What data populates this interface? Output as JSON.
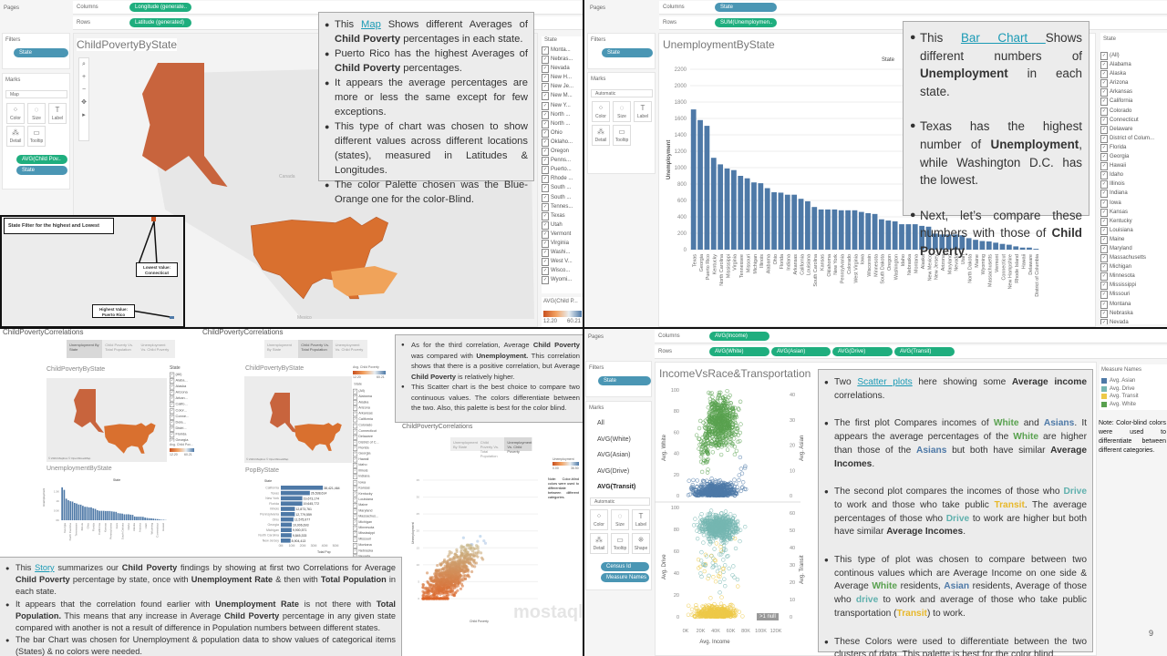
{
  "q1": {
    "pages": "Pages",
    "columns_label": "Columns",
    "rows_label": "Rows",
    "columns_pill": "Longitude (generate..",
    "rows_pill": "Latitude (generated)",
    "filters_label": "Filters",
    "filter_pill": "State",
    "marks_label": "Marks",
    "mark_type": "Map",
    "mark_buttons": [
      "Color",
      "Size",
      "Label",
      "Detail",
      "Tooltip"
    ],
    "mark_pills": [
      "AVG(Child Pov..",
      "State"
    ],
    "title": "ChildPovertyByState",
    "map_labels": {
      "canada": "Canada",
      "mexico": "Mexico"
    },
    "note": [
      [
        {
          "t": "This "
        },
        {
          "t": "Map",
          "link": true
        },
        {
          "t": " Shows different Averages of "
        },
        {
          "t": "Child Poverty",
          "b": true
        },
        {
          "t": " percentages in each state."
        }
      ],
      [
        {
          "t": "Puerto Rico has the highest Averages of "
        },
        {
          "t": "Child Poverty",
          "b": true
        },
        {
          "t": " percentages."
        }
      ],
      [
        {
          "t": "It appears the average percentages are more or less the same except for few exceptions."
        }
      ],
      [
        {
          "t": "This type of chart was chosen to show different values across different locations (states), measured in Latitudes & Longitudes."
        }
      ],
      [
        {
          "t": "The color Palette chosen was the Blue-Orange one for the color-Blind."
        }
      ]
    ],
    "state_header": "State",
    "states": [
      "Monta...",
      "Nebras...",
      "Nevada",
      "New H...",
      "New Je...",
      "New M...",
      "New Y...",
      "North ...",
      "North ...",
      "Ohio",
      "Oklaho...",
      "Oregon",
      "Penns...",
      "Puerto...",
      "Rhode ...",
      "South ...",
      "South ...",
      "Tennes...",
      "Texas",
      "Utah",
      "Vermont",
      "Virginia",
      "Washi...",
      "West V...",
      "Wisco...",
      "Wyomi..."
    ],
    "legend_title": "AVG(Child P...",
    "legend_min": "12.20",
    "legend_max": "60.21",
    "inset": {
      "label": "State Filter for the highest and Lowest",
      "lowest": "Lowest Value: Connecticut",
      "highest": "Highest Value: Puerto Rico"
    }
  },
  "q2": {
    "pages": "Pages",
    "columns_label": "Columns",
    "rows_label": "Rows",
    "columns_pill": "State",
    "rows_pill": "SUM(Unemploymen..",
    "filters_label": "Filters",
    "filter_pill": "State",
    "marks_label": "Marks",
    "mark_type": "Automatic",
    "mark_buttons": [
      "Color",
      "Size",
      "Label",
      "Detail",
      "Tooltip"
    ],
    "title": "UnemploymentByState",
    "col_header": "State",
    "y_axis_label": "Unemployment",
    "note": [
      [
        {
          "t": "This "
        },
        {
          "t": "Bar Chart ",
          "link": true
        },
        {
          "t": "Shows different numbers of "
        },
        {
          "t": "Unemployment",
          "b": true
        },
        {
          "t": " in each state."
        }
      ],
      [
        {
          "t": "Texas has the highest number of "
        },
        {
          "t": "Unemployment",
          "b": true
        },
        {
          "t": ", while Washington D.C. has the lowest."
        }
      ],
      [
        {
          "t": "Next, let’s compare these numbers with those of "
        },
        {
          "t": "Child Poverty",
          "b": true
        },
        {
          "t": "."
        }
      ]
    ],
    "state_header": "State",
    "states": [
      "(All)",
      "Alabama",
      "Alaska",
      "Arizona",
      "Arkansas",
      "California",
      "Colorado",
      "Connecticut",
      "Delaware",
      "District of Colum...",
      "Florida",
      "Georgia",
      "Hawaii",
      "Idaho",
      "Illinois",
      "Indiana",
      "Iowa",
      "Kansas",
      "Kentucky",
      "Louisiana",
      "Maine",
      "Maryland",
      "Massachusetts",
      "Michigan",
      "Minnesota",
      "Mississippi",
      "Missouri",
      "Montana",
      "Nebraska",
      "Nevada"
    ],
    "chart_data": {
      "type": "bar",
      "categories": [
        "Texas",
        "Georgia",
        "Puerto Rico",
        "Kentucky",
        "North Carolina",
        "Mississippi",
        "Virginia",
        "Tennessee",
        "Missouri",
        "Michigan",
        "Illinois",
        "Alabama",
        "Ohio",
        "Florida",
        "Indiana",
        "Arkansas",
        "California",
        "Louisiana",
        "South Carolina",
        "Kansas",
        "Oklahoma",
        "New York",
        "Pennsylvania",
        "Colorado",
        "West Virginia",
        "Iowa",
        "Wisconsin",
        "Minnesota",
        "South Dakota",
        "Oregon",
        "Washington",
        "Idaho",
        "Nebraska",
        "Montana",
        "Alaska",
        "New Mexico",
        "New Jersey",
        "Arizona",
        "Maryland",
        "Nevada",
        "Utah",
        "North Dakota",
        "Maine",
        "Wyoming",
        "Massachusetts",
        "Vermont",
        "Connecticut",
        "New Hampshire",
        "Rhode Island",
        "Hawaii",
        "Delaware",
        "District of Columbia"
      ],
      "values": [
        1710,
        1580,
        1510,
        1120,
        1040,
        990,
        970,
        900,
        870,
        820,
        810,
        750,
        700,
        695,
        670,
        670,
        620,
        590,
        520,
        490,
        490,
        490,
        480,
        480,
        480,
        460,
        445,
        435,
        370,
        355,
        345,
        310,
        310,
        310,
        290,
        280,
        195,
        185,
        185,
        185,
        175,
        140,
        120,
        105,
        100,
        85,
        70,
        60,
        40,
        25,
        25,
        10
      ],
      "ylabel": "Unemployment",
      "xlabel": "State",
      "yticks": [
        0,
        200,
        400,
        600,
        800,
        1000,
        1200,
        1400,
        1600,
        1800,
        2000,
        2200
      ],
      "ylim": [
        0,
        2200
      ],
      "grid": true,
      "color": "#4e79a7"
    }
  },
  "q3": {
    "story_title": "ChildPovertyCorrelations",
    "story_tabs": [
      "Unemployment By State",
      "Child Poverty Vs. Total Population",
      "Unemployment Vs. Child Poverty"
    ],
    "d1": {
      "map_title": "ChildPovertyByState",
      "state_header": "State",
      "states": [
        "(All)",
        "Alaba...",
        "Alaska",
        "Arizona",
        "Arkan...",
        "Califo...",
        "Color...",
        "Conne...",
        "Dela...",
        "Distri...",
        "Florida",
        "Georgia"
      ],
      "legend_title": "Avg. Child Pov...",
      "legend_min": "12.20",
      "legend_max": "60.21",
      "credit": "© 2024 Mapbox © OpenStreetMap",
      "bar_title": "UnemploymentByState",
      "bar_header": "State",
      "bar_ylabel": "Unemployment",
      "yticks": [
        "1.5K",
        "1K",
        "0.5K",
        "0K"
      ],
      "xlabels": [
        "Georgia",
        "North Carolina",
        "Tennessee",
        "Illinois",
        "Ohio",
        "Florida",
        "California",
        "Kansas",
        "Pennsylvania",
        "Iowa",
        "South Dakota",
        "Idaho",
        "Alaska",
        "Arizona",
        "Utah",
        "Wyoming",
        "Connecticut",
        "Hawaii"
      ]
    },
    "d2": {
      "map_title": "ChildPovertyByState",
      "legend_title": "Avg. Child Poverty",
      "legend_min": "12.20",
      "legend_max": "60.21",
      "credit": "© 2024 Mapbox © OpenStreetMap",
      "state_header": "State",
      "states": [
        "(All)",
        "Alabama",
        "Alaska",
        "Arizona",
        "Arkansas",
        "California",
        "Colorado",
        "Connecticut",
        "Delaware",
        "District of C...",
        "Florida",
        "Georgia",
        "Hawaii",
        "Idaho",
        "Illinois",
        "Indiana",
        "Iowa",
        "Kansas",
        "Kentucky",
        "Louisiana",
        "Maine",
        "Maryland",
        "Massachus...",
        "Michigan",
        "Minnesota",
        "Mississippi",
        "Missouri",
        "Montana",
        "Nebraska",
        "Nevada"
      ],
      "bar_title": "PopByState",
      "bar_header": "State",
      "pop": {
        "categories": [
          "California",
          "Texas",
          "New York",
          "Florida",
          "Illinois",
          "Pennsylvania",
          "Ohio",
          "Georgia",
          "Michigan",
          "North Carolina",
          "New Jersey"
        ],
        "values": [
          38421464,
          26538614,
          19673174,
          19645772,
          12873761,
          12779559,
          11575977,
          10006693,
          9900571,
          9845333,
          8904413
        ],
        "labels": [
          "38,421,464",
          "26,538,614",
          "19,673,174",
          "19,645,772",
          "12,873,761",
          "12,779,559",
          "11,575,977",
          "10,006,693",
          "9,900,571",
          "9,845,333",
          "8,904,413"
        ]
      },
      "xticks": [
        "0M",
        "10M",
        "20M",
        "30M",
        "40M",
        "50M"
      ],
      "xlabel": "Total Pop"
    },
    "note": [
      [
        {
          "t": "As for the third correlation, Average "
        },
        {
          "t": "Child Poverty",
          "b": true
        },
        {
          "t": " was compared with "
        },
        {
          "t": "Unemployment.",
          "b": true
        },
        {
          "t": " This correlation shows that there is a positive correlation, but Average "
        },
        {
          "t": "Child Poverty",
          "b": true
        },
        {
          "t": " is relatively higher."
        }
      ],
      [
        {
          "t": "This Scatter chart is the best choice to compare two continuous values. The colors differentiate between the two. Also, this palette is best for the color blind."
        }
      ]
    ],
    "d3": {
      "legend_title": "Unemployment",
      "legend_min": "0.00",
      "legend_max": "36.50",
      "side_note": "Note: Color-blind colors were used to differentiate between different categories.",
      "xlabel": "Child Poverty",
      "ylabel": "Unemployment",
      "yticks": [
        "35",
        "30",
        "25",
        "20",
        "15",
        "10",
        "5",
        "0"
      ]
    },
    "summary": [
      [
        {
          "t": "This "
        },
        {
          "t": "Story",
          "link": true
        },
        {
          "t": " summarizes our "
        },
        {
          "t": "Child Poverty",
          "b": true
        },
        {
          "t": " findings by showing at first two Correlations for Average "
        },
        {
          "t": "Child Poverty",
          "b": true
        },
        {
          "t": " percentage by state, once with "
        },
        {
          "t": "Unemployment Rate",
          "b": true
        },
        {
          "t": " & then with "
        },
        {
          "t": "Total Population",
          "b": true
        },
        {
          "t": " in each state."
        }
      ],
      [
        {
          "t": "It appears that the correlation found earlier with "
        },
        {
          "t": "Unemployment Rate",
          "b": true
        },
        {
          "t": " is not there with "
        },
        {
          "t": "Total Population.",
          "b": true
        },
        {
          "t": " This means that any increase in Average "
        },
        {
          "t": "Child Poverty",
          "b": true
        },
        {
          "t": " percentage in any given state compared with another is not a result of difference in Population numbers between different states."
        }
      ],
      [
        {
          "t": "The bar Chart was chosen for Unemployment & population data to show values of categorical items (States) & no colors were needed."
        }
      ]
    ],
    "watermark": "mostaql.com"
  },
  "q4": {
    "pages": "Pages",
    "columns_label": "Columns",
    "rows_label": "Rows",
    "columns_pill": "AVG(Income)",
    "rows_pills": [
      "AVG(White)",
      "AVG(Asian)",
      "AVG(Drive)",
      "AVG(Transit)"
    ],
    "filters_label": "Filters",
    "filter_pill": "State",
    "marks_label": "Marks",
    "marks_cards": [
      "All",
      "AVG(White)",
      "AVG(Asian)",
      "AVG(Drive)",
      "AVG(Transit)"
    ],
    "mark_type": "Automatic",
    "mark_buttons": [
      "Color",
      "Size",
      "Label",
      "Detail",
      "Tooltip",
      "Shape"
    ],
    "mark_pills": [
      "Census Id",
      "Measure Names"
    ],
    "title": "IncomeVsRace&Transportation",
    "axes": {
      "white": "Avg. White",
      "asian": "Avg. Asian",
      "drive": "Avg. Drive",
      "transit": "Avg. Transit",
      "income": "Avg. Income",
      "left_ticks": [
        "100",
        "80",
        "60",
        "40",
        "20",
        "0"
      ],
      "asian_ticks": [
        "40",
        "30",
        "20",
        "10",
        "0"
      ],
      "transit_ticks": [
        "60",
        "50",
        "40",
        "30",
        "20",
        "10",
        "0"
      ],
      "x_ticks": [
        "0K",
        "20K",
        "40K",
        "60K",
        "80K",
        "100K",
        "120K"
      ]
    },
    "null_badge": ">1 null",
    "legend_title": "Measure Names",
    "legend": [
      {
        "label": "Avg. Asian",
        "color": "#4e79a7"
      },
      {
        "label": "Avg. Drive",
        "color": "#76b7b2"
      },
      {
        "label": "Avg. Transit",
        "color": "#edc948"
      },
      {
        "label": "Avg. White",
        "color": "#59a14f"
      }
    ],
    "side_note": "Note: Color-blind colors were used to differentiate between different categories.",
    "note": [
      [
        {
          "t": "Two "
        },
        {
          "t": "Scatter plots",
          "link": true
        },
        {
          "t": " here showing some "
        },
        {
          "t": "Average income",
          "b": true
        },
        {
          "t": " correlations."
        }
      ],
      [
        {
          "t": "The first plot Compares incomes of "
        },
        {
          "t": "White",
          "b": true,
          "c": "#59a14f"
        },
        {
          "t": " and "
        },
        {
          "t": "Asians",
          "b": true,
          "c": "#4e79a7"
        },
        {
          "t": ". It appears the average percentages of the "
        },
        {
          "t": "White",
          "b": true,
          "c": "#59a14f"
        },
        {
          "t": " are higher than those of the "
        },
        {
          "t": "Asians",
          "b": true,
          "c": "#4e79a7"
        },
        {
          "t": " but both have similar "
        },
        {
          "t": "Average Incomes",
          "b": true
        },
        {
          "t": "."
        }
      ],
      [
        {
          "t": "The second plot compares the incomes of those who "
        },
        {
          "t": "Drive",
          "b": true,
          "c": "#5fb0ad"
        },
        {
          "t": " to work and those who take public "
        },
        {
          "t": "Transit",
          "b": true,
          "c": "#e8b82a"
        },
        {
          "t": ". The average percentages of those who "
        },
        {
          "t": "Drive",
          "b": true,
          "c": "#5fb0ad"
        },
        {
          "t": " to work are higher but both have similar "
        },
        {
          "t": "Average Incomes",
          "b": true
        },
        {
          "t": "."
        }
      ],
      [
        {
          "t": "This type of plot was chosen to compare between two continous values which are Average Income on one side & Average "
        },
        {
          "t": "White",
          "b": true,
          "c": "#59a14f"
        },
        {
          "t": " residents, "
        },
        {
          "t": "Asian",
          "b": true,
          "c": "#4e79a7"
        },
        {
          "t": " residents, Average of those who "
        },
        {
          "t": "drive",
          "b": true,
          "c": "#5fb0ad"
        },
        {
          "t": " to work and average of those who take public transportation ("
        },
        {
          "t": "Transit",
          "b": true,
          "c": "#e8b82a"
        },
        {
          "t": ") to work."
        }
      ],
      [
        {
          "t": "These Colors were used to differentiate between the two clusters of data. This palette is best for the color blind."
        }
      ]
    ],
    "page_number": "9"
  },
  "colors": {
    "pill_green": "#1fae7e",
    "pill_blue": "#4a96b4",
    "bar": "#4e79a7",
    "map_orange": "#d9702f"
  }
}
